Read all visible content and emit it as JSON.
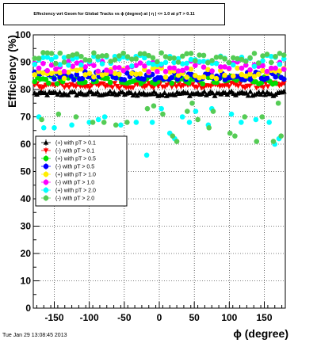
{
  "chart_data": {
    "type": "scatter",
    "title": "Effeciency wrt Geom for Global Tracks vs ϕ (degree) at | η | <= 1.0 at pT > 0.11",
    "xlabel": "ϕ (degree)",
    "ylabel": "Efficiency (%)",
    "xlim": [
      -180,
      180
    ],
    "ylim": [
      0,
      100
    ],
    "x_ticks": [
      -150,
      -100,
      -50,
      0,
      50,
      100,
      150
    ],
    "y_ticks": [
      0,
      10,
      20,
      30,
      40,
      50,
      60,
      70,
      80,
      90,
      100
    ],
    "grid": true,
    "legend_position": "middle-left",
    "series": [
      {
        "name": "(+) with pT > 0.1",
        "color": "#000000",
        "marker": "triangle-up",
        "level": 78.5,
        "noise": 0.8,
        "n": 120,
        "x": [],
        "values": []
      },
      {
        "name": "(-) with pT > 0.1",
        "color": "#ff0000",
        "marker": "triangle-down",
        "level": 81.5,
        "noise": 1.0,
        "n": 110,
        "x": [],
        "values": []
      },
      {
        "name": "(+) with pT > 0.5",
        "color": "#00dd00",
        "marker": "circle",
        "level": 83.5,
        "noise": 1.5,
        "n": 90,
        "x": [],
        "values": []
      },
      {
        "name": "(-) with pT > 0.5",
        "color": "#0000ff",
        "marker": "circle",
        "level": 85.0,
        "noise": 1.5,
        "n": 90,
        "x": [],
        "values": []
      },
      {
        "name": "(+) with pT > 1.0",
        "color": "#ffee00",
        "marker": "circle",
        "level": 86.0,
        "noise": 2.0,
        "n": 60,
        "x": [],
        "values": []
      },
      {
        "name": "(-) with pT > 1.0",
        "color": "#ff00ff",
        "marker": "circle",
        "level": 88.5,
        "noise": 2.0,
        "n": 60,
        "x": [],
        "values": []
      },
      {
        "name": "(+) with pT > 2.0",
        "color": "#00ffff",
        "marker": "circle",
        "level": 90.5,
        "noise": 2.0,
        "n": 60,
        "x": [],
        "values": [],
        "outliers": [
          [
            -172,
            70
          ],
          [
            -165,
            66
          ],
          [
            -150,
            66
          ],
          [
            -125,
            67
          ],
          [
            -100,
            68
          ],
          [
            -87,
            69
          ],
          [
            -78,
            70
          ],
          [
            -55,
            67
          ],
          [
            -33,
            68
          ],
          [
            -18,
            56
          ],
          [
            -10,
            68
          ],
          [
            3,
            73
          ],
          [
            15,
            64
          ],
          [
            22,
            62
          ],
          [
            33,
            70
          ],
          [
            43,
            68
          ],
          [
            52,
            72
          ],
          [
            70,
            67
          ],
          [
            75,
            73
          ],
          [
            103,
            71
          ],
          [
            117,
            68
          ],
          [
            138,
            69
          ],
          [
            157,
            68
          ],
          [
            165,
            60
          ],
          [
            171,
            62
          ]
        ]
      },
      {
        "name": "(-) with pT > 2.0",
        "color": "#55cc55",
        "marker": "circle",
        "level": 91.5,
        "noise": 2.0,
        "n": 60,
        "x": [],
        "values": [],
        "outliers": [
          [
            -168,
            69
          ],
          [
            -144,
            71
          ],
          [
            -119,
            70
          ],
          [
            -95,
            68
          ],
          [
            -79,
            68
          ],
          [
            -62,
            67
          ],
          [
            -46,
            68
          ],
          [
            -17,
            73
          ],
          [
            -8,
            74
          ],
          [
            5,
            71
          ],
          [
            19,
            63
          ],
          [
            25,
            61
          ],
          [
            40,
            72
          ],
          [
            47,
            75
          ],
          [
            55,
            69
          ],
          [
            71,
            66
          ],
          [
            77,
            72
          ],
          [
            101,
            64
          ],
          [
            108,
            63
          ],
          [
            122,
            70
          ],
          [
            139,
            61
          ],
          [
            147,
            70
          ],
          [
            163,
            61
          ],
          [
            170,
            75
          ],
          [
            174,
            63
          ]
        ]
      }
    ]
  },
  "footer": {
    "timestamp": "Tue Jan 29 13:08:45 2013"
  }
}
